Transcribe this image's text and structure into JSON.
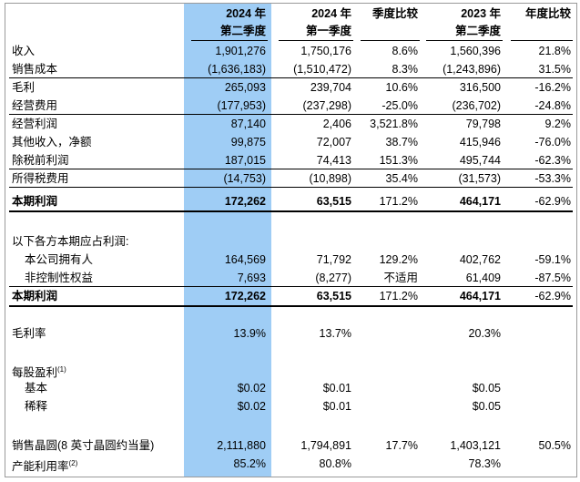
{
  "header": {
    "col1": [
      "2024 年",
      "第二季度"
    ],
    "col2": [
      "2024 年",
      "第一季度"
    ],
    "col3": [
      "季度比较",
      ""
    ],
    "col4": [
      "2023 年",
      "第二季度"
    ],
    "col5": [
      "年度比较",
      ""
    ]
  },
  "rows": [
    {
      "label": "收入",
      "v": [
        "1,901,276",
        "1,750,176",
        "8.6%",
        "1,560,396",
        "21.8%"
      ]
    },
    {
      "label": "销售成本",
      "v": [
        "(1,636,183)",
        "(1,510,472)",
        "8.3%",
        "(1,243,896)",
        "31.5%"
      ]
    },
    {
      "label": "毛利",
      "v": [
        "265,093",
        "239,704",
        "10.6%",
        "316,500",
        "-16.2%"
      ]
    },
    {
      "label": "经营费用",
      "v": [
        "(177,953)",
        "(237,298)",
        "-25.0%",
        "(236,702)",
        "-24.8%"
      ]
    },
    {
      "label": "经营利润",
      "v": [
        "87,140",
        "2,406",
        "3,521.8%",
        "79,798",
        "9.2%"
      ]
    },
    {
      "label": "其他收入，净额",
      "v": [
        "99,875",
        "72,007",
        "38.7%",
        "415,946",
        "-76.0%"
      ]
    },
    {
      "label": "除税前利润",
      "v": [
        "187,015",
        "74,413",
        "151.3%",
        "495,744",
        "-62.3%"
      ]
    },
    {
      "label": "所得税费用",
      "v": [
        "(14,753)",
        "(10,898)",
        "35.4%",
        "(31,573)",
        "-53.3%"
      ]
    },
    {
      "label": "本期利润",
      "v": [
        "172,262",
        "63,515",
        "171.2%",
        "464,171",
        "-62.9%"
      ]
    },
    {
      "label": "以下各方本期应占利润:",
      "v": [
        "",
        "",
        "",
        "",
        ""
      ]
    },
    {
      "label": "本公司拥有人",
      "v": [
        "164,569",
        "71,792",
        "129.2%",
        "402,762",
        "-59.1%"
      ]
    },
    {
      "label": "非控制性权益",
      "v": [
        "7,693",
        "(8,277)",
        "不适用",
        "61,409",
        "-87.5%"
      ]
    },
    {
      "label": "本期利润",
      "v": [
        "172,262",
        "63,515",
        "171.2%",
        "464,171",
        "-62.9%"
      ]
    },
    {
      "label": "毛利率",
      "v": [
        "13.9%",
        "13.7%",
        "",
        "20.3%",
        ""
      ]
    },
    {
      "label": "每股盈利",
      "sup": "(1)",
      "v": [
        "",
        "",
        "",
        "",
        ""
      ]
    },
    {
      "label": "基本",
      "v": [
        "$0.02",
        "$0.01",
        "",
        "$0.05",
        ""
      ]
    },
    {
      "label": "稀释",
      "v": [
        "$0.02",
        "$0.01",
        "",
        "$0.05",
        ""
      ]
    },
    {
      "label": "销售晶圆(8 英寸晶圆约当量)",
      "v": [
        "2,111,880",
        "1,794,891",
        "17.7%",
        "1,403,121",
        "50.5%"
      ]
    },
    {
      "label": "产能利用率",
      "sup": "(2)",
      "v": [
        "85.2%",
        "80.8%",
        "",
        "78.3%",
        ""
      ]
    }
  ]
}
